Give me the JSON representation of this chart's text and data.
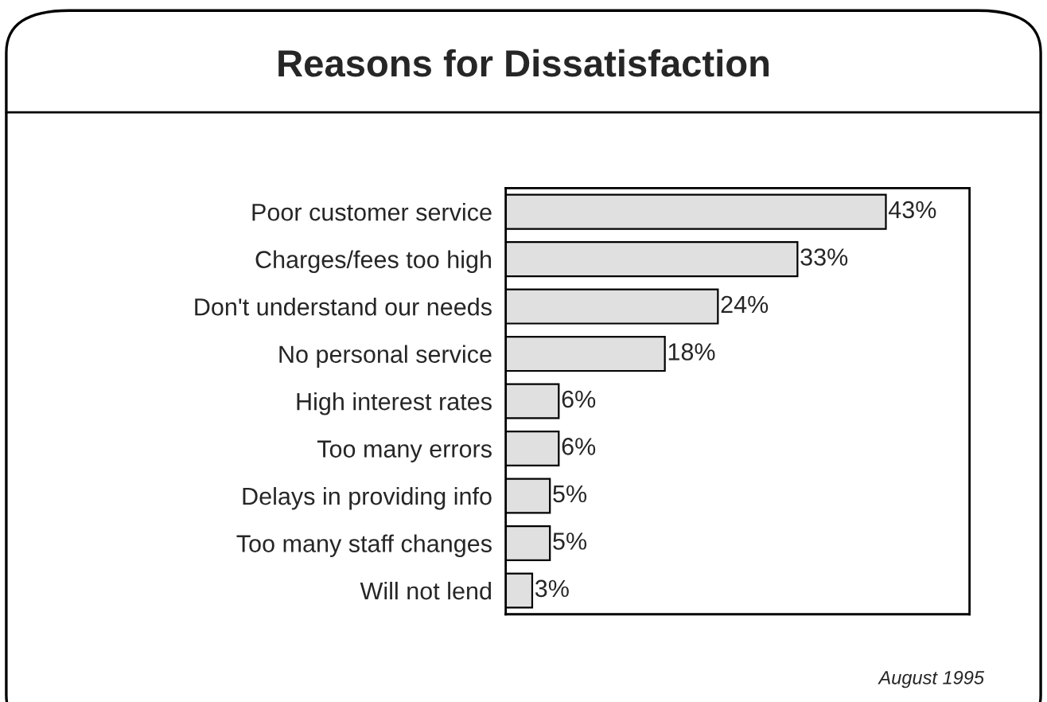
{
  "chart_data": {
    "type": "bar",
    "orientation": "horizontal",
    "title": "Reasons for Dissatisfaction",
    "categories": [
      "Poor customer service",
      "Charges/fees too high",
      "Don't understand our needs",
      "No personal service",
      "High interest rates",
      "Too many errors",
      "Delays in providing info",
      "Too many staff changes",
      "Will not lend"
    ],
    "values": [
      43,
      33,
      24,
      18,
      6,
      6,
      5,
      5,
      3
    ],
    "value_labels": [
      "43%",
      "33%",
      "24%",
      "18%",
      "6%",
      "6%",
      "5%",
      "5%",
      "3%"
    ],
    "color": "#e0e0e0",
    "grid": false,
    "legend": false,
    "tick_labels": "y",
    "annotations": [
      "August 1995"
    ]
  }
}
